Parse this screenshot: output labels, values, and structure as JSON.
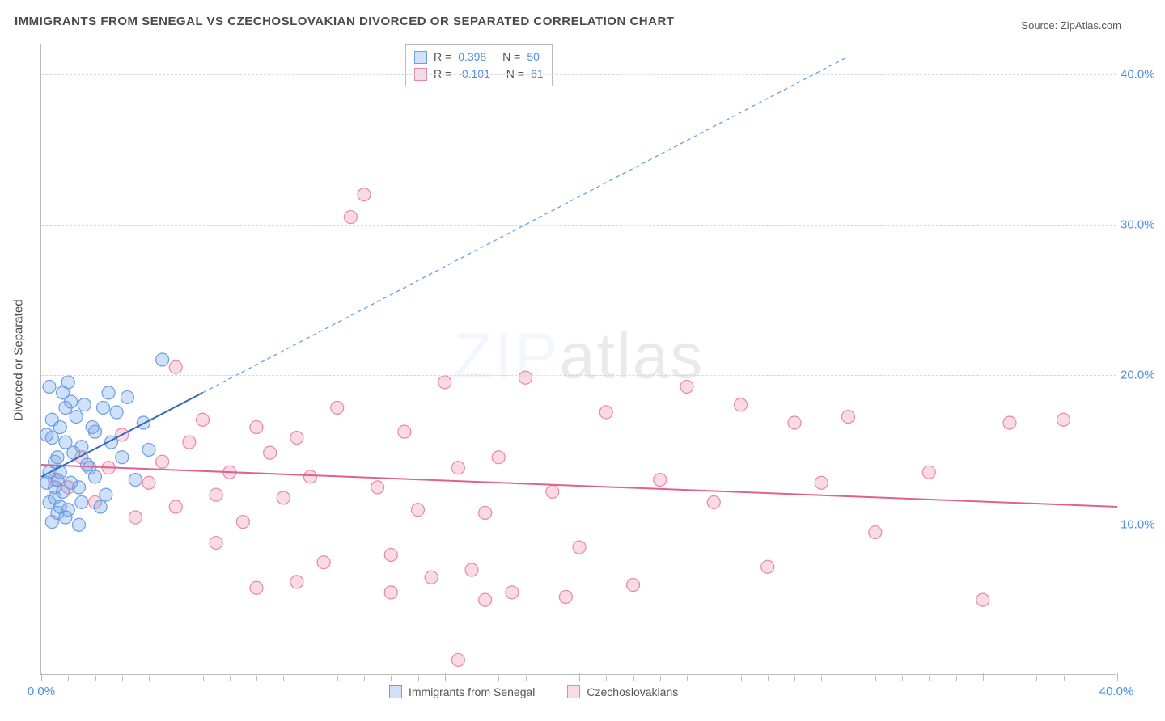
{
  "title": "IMMIGRANTS FROM SENEGAL VS CZECHOSLOVAKIAN DIVORCED OR SEPARATED CORRELATION CHART",
  "source_label": "Source:",
  "source_name": "ZipAtlas.com",
  "ylabel": "Divorced or Separated",
  "watermark": {
    "part1": "ZIP",
    "part2": "atlas"
  },
  "chart": {
    "type": "scatter",
    "xlim": [
      0,
      40
    ],
    "ylim": [
      0,
      42
    ],
    "yticks": [
      10,
      20,
      30,
      40
    ],
    "ytick_labels": [
      "10.0%",
      "20.0%",
      "30.0%",
      "40.0%"
    ],
    "xtick_labels": {
      "min": "0.0%",
      "max": "40.0%"
    },
    "grid_color": "#d8d8d8",
    "axis_color": "#bbbbbb",
    "background": "#ffffff",
    "marker_radius": 8,
    "marker_stroke_width": 1.2,
    "series": [
      {
        "name": "Immigrants from Senegal",
        "fill": "rgba(120,165,230,0.35)",
        "stroke": "#6a9ee8",
        "r_label": "R =",
        "r_value": "0.398",
        "n_label": "N =",
        "n_value": "50",
        "trend": {
          "x1": 0,
          "y1": 13.2,
          "x2": 6,
          "y2": 18.8,
          "stroke": "#3068c2",
          "width": 2
        },
        "trend_ext": {
          "x1": 6,
          "y1": 18.8,
          "x2": 30,
          "y2": 41.2,
          "stroke": "#6a9ee8",
          "dash": "5,4",
          "width": 1.3
        },
        "points": [
          [
            0.2,
            12.8
          ],
          [
            0.3,
            11.5
          ],
          [
            0.5,
            14.2
          ],
          [
            0.4,
            15.8
          ],
          [
            0.6,
            13.0
          ],
          [
            0.7,
            16.5
          ],
          [
            0.8,
            12.2
          ],
          [
            0.9,
            17.8
          ],
          [
            1.0,
            11.0
          ],
          [
            1.1,
            18.2
          ],
          [
            0.3,
            19.2
          ],
          [
            0.5,
            11.8
          ],
          [
            0.7,
            13.5
          ],
          [
            1.2,
            14.8
          ],
          [
            1.4,
            12.5
          ],
          [
            1.5,
            15.2
          ],
          [
            1.6,
            18.0
          ],
          [
            1.8,
            13.8
          ],
          [
            2.0,
            16.2
          ],
          [
            2.2,
            11.2
          ],
          [
            0.4,
            10.2
          ],
          [
            0.6,
            10.8
          ],
          [
            0.9,
            10.5
          ],
          [
            1.3,
            17.2
          ],
          [
            1.7,
            14.0
          ],
          [
            2.4,
            12.0
          ],
          [
            2.6,
            15.5
          ],
          [
            2.8,
            17.5
          ],
          [
            3.0,
            14.5
          ],
          [
            3.2,
            18.5
          ],
          [
            1.0,
            19.5
          ],
          [
            0.8,
            18.8
          ],
          [
            0.2,
            16.0
          ],
          [
            0.4,
            17.0
          ],
          [
            2.0,
            13.2
          ],
          [
            2.5,
            18.8
          ],
          [
            3.5,
            13.0
          ],
          [
            3.8,
            16.8
          ],
          [
            4.0,
            15.0
          ],
          [
            4.5,
            21.0
          ],
          [
            0.6,
            14.5
          ],
          [
            0.9,
            15.5
          ],
          [
            1.1,
            12.8
          ],
          [
            1.5,
            11.5
          ],
          [
            1.9,
            16.5
          ],
          [
            2.3,
            17.8
          ],
          [
            0.3,
            13.5
          ],
          [
            0.7,
            11.2
          ],
          [
            1.4,
            10.0
          ],
          [
            0.5,
            12.5
          ]
        ]
      },
      {
        "name": "Czechoslovakians",
        "fill": "rgba(240,150,175,0.35)",
        "stroke": "#e888a8",
        "r_label": "R =",
        "r_value": "-0.101",
        "n_label": "N =",
        "n_value": "61",
        "trend": {
          "x1": 0,
          "y1": 14.0,
          "x2": 40,
          "y2": 11.2,
          "stroke": "#e06090",
          "width": 2
        },
        "points": [
          [
            0.5,
            13.0
          ],
          [
            1.0,
            12.5
          ],
          [
            1.5,
            14.5
          ],
          [
            2.0,
            11.5
          ],
          [
            2.5,
            13.8
          ],
          [
            3.0,
            16.0
          ],
          [
            3.5,
            10.5
          ],
          [
            4.0,
            12.8
          ],
          [
            4.5,
            14.2
          ],
          [
            5.0,
            11.2
          ],
          [
            5.5,
            15.5
          ],
          [
            6.0,
            17.0
          ],
          [
            6.5,
            12.0
          ],
          [
            7.0,
            13.5
          ],
          [
            7.5,
            10.2
          ],
          [
            8.0,
            16.5
          ],
          [
            8.5,
            14.8
          ],
          [
            9.0,
            11.8
          ],
          [
            9.5,
            15.8
          ],
          [
            10.0,
            13.2
          ],
          [
            10.5,
            7.5
          ],
          [
            11.0,
            17.8
          ],
          [
            11.5,
            30.5
          ],
          [
            12.0,
            32.0
          ],
          [
            12.5,
            12.5
          ],
          [
            13.0,
            8.0
          ],
          [
            13.5,
            16.2
          ],
          [
            14.0,
            11.0
          ],
          [
            14.5,
            6.5
          ],
          [
            15.0,
            19.5
          ],
          [
            15.5,
            13.8
          ],
          [
            16.0,
            7.0
          ],
          [
            16.5,
            10.8
          ],
          [
            17.0,
            14.5
          ],
          [
            17.5,
            5.5
          ],
          [
            18.0,
            19.8
          ],
          [
            19.0,
            12.2
          ],
          [
            20.0,
            8.5
          ],
          [
            21.0,
            17.5
          ],
          [
            22.0,
            6.0
          ],
          [
            23.0,
            13.0
          ],
          [
            24.0,
            19.2
          ],
          [
            25.0,
            11.5
          ],
          [
            26.0,
            18.0
          ],
          [
            27.0,
            7.2
          ],
          [
            28.0,
            16.8
          ],
          [
            29.0,
            12.8
          ],
          [
            30.0,
            17.2
          ],
          [
            31.0,
            9.5
          ],
          [
            15.5,
            1.0
          ],
          [
            16.5,
            5.0
          ],
          [
            5.0,
            20.5
          ],
          [
            6.5,
            8.8
          ],
          [
            8.0,
            5.8
          ],
          [
            9.5,
            6.2
          ],
          [
            33.0,
            13.5
          ],
          [
            35.0,
            5.0
          ],
          [
            36.0,
            16.8
          ],
          [
            38.0,
            17.0
          ],
          [
            13.0,
            5.5
          ],
          [
            19.5,
            5.2
          ]
        ]
      }
    ]
  }
}
